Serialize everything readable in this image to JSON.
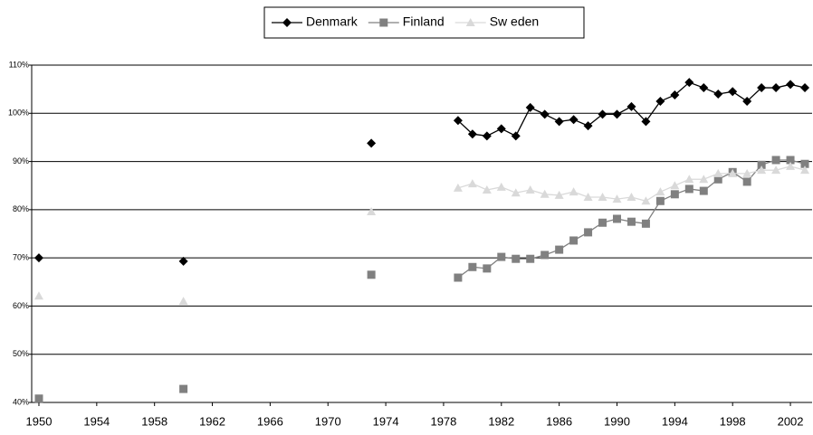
{
  "chart_data": {
    "type": "line",
    "x": [
      1950,
      1951,
      1952,
      1953,
      1954,
      1955,
      1956,
      1957,
      1958,
      1959,
      1960,
      1961,
      1962,
      1963,
      1964,
      1965,
      1966,
      1967,
      1968,
      1969,
      1970,
      1971,
      1972,
      1973,
      1974,
      1975,
      1976,
      1977,
      1978,
      1979,
      1980,
      1981,
      1982,
      1983,
      1984,
      1985,
      1986,
      1987,
      1988,
      1989,
      1990,
      1991,
      1992,
      1993,
      1994,
      1995,
      1996,
      1997,
      1998,
      1999,
      2000,
      2001,
      2002,
      2003
    ],
    "series": [
      {
        "name": "Denmark",
        "color": "#000000",
        "marker": "diamond",
        "values": [
          70.0,
          null,
          null,
          null,
          null,
          null,
          null,
          null,
          null,
          null,
          69.3,
          null,
          null,
          null,
          null,
          null,
          null,
          null,
          null,
          null,
          null,
          null,
          null,
          93.8,
          null,
          null,
          null,
          null,
          null,
          98.5,
          95.7,
          95.3,
          96.8,
          95.3,
          101.2,
          99.8,
          98.3,
          98.7,
          97.4,
          99.8,
          99.8,
          101.4,
          98.3,
          102.5,
          103.8,
          106.4,
          105.3,
          104.0,
          104.5,
          102.5,
          105.3,
          105.3,
          106.0,
          105.3
        ]
      },
      {
        "name": "Finland",
        "color": "#808080",
        "marker": "square",
        "values": [
          40.8,
          null,
          null,
          null,
          null,
          null,
          null,
          null,
          null,
          null,
          42.8,
          null,
          null,
          null,
          null,
          null,
          null,
          null,
          null,
          null,
          null,
          null,
          null,
          66.5,
          null,
          null,
          null,
          null,
          null,
          65.9,
          68.1,
          67.8,
          70.2,
          69.8,
          69.8,
          70.6,
          71.7,
          73.6,
          75.3,
          77.3,
          78.1,
          77.5,
          77.1,
          81.8,
          83.2,
          84.3,
          83.9,
          86.3,
          87.8,
          85.8,
          89.3,
          90.3,
          90.3,
          89.5
        ]
      },
      {
        "name": "Sw eden",
        "color": "#d9d9d9",
        "marker": "triangle",
        "values": [
          62.1,
          null,
          null,
          null,
          null,
          null,
          null,
          null,
          null,
          null,
          61.0,
          null,
          null,
          null,
          null,
          null,
          null,
          null,
          null,
          null,
          null,
          null,
          null,
          79.6,
          null,
          null,
          null,
          null,
          null,
          84.5,
          85.4,
          84.1,
          84.7,
          83.5,
          84.1,
          83.2,
          83.0,
          83.7,
          82.6,
          82.6,
          82.2,
          82.6,
          81.8,
          83.7,
          85.0,
          86.3,
          86.3,
          87.5,
          87.5,
          87.5,
          88.2,
          88.2,
          89.0,
          88.2
        ]
      }
    ],
    "xlim": [
      1949.5,
      2003.5
    ],
    "xticks": [
      1950,
      1954,
      1958,
      1962,
      1966,
      1970,
      1974,
      1978,
      1982,
      1986,
      1990,
      1994,
      1998,
      2002
    ],
    "ylim": [
      40,
      110
    ],
    "yticks": [
      {
        "value": 40,
        "label": "40%"
      },
      {
        "value": 50,
        "label": "50%"
      },
      {
        "value": 60,
        "label": "60%"
      },
      {
        "value": 70,
        "label": "70%"
      },
      {
        "value": 80,
        "label": "80%"
      },
      {
        "value": 90,
        "label": "90%"
      },
      {
        "value": 100,
        "label": "100%"
      },
      {
        "value": 110,
        "label": "110%"
      }
    ],
    "grid": true,
    "legend": "top"
  }
}
